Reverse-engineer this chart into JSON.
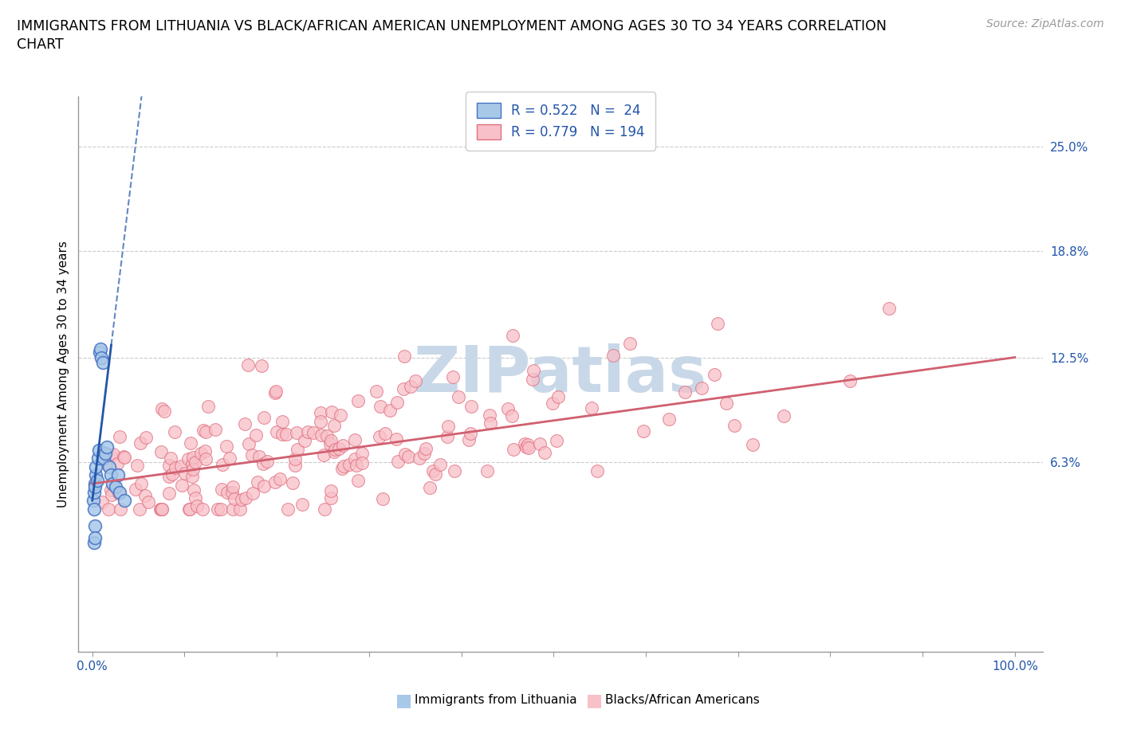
{
  "title_line1": "IMMIGRANTS FROM LITHUANIA VS BLACK/AFRICAN AMERICAN UNEMPLOYMENT AMONG AGES 30 TO 34 YEARS CORRELATION",
  "title_line2": "CHART",
  "source_text": "Source: ZipAtlas.com",
  "ylabel": "Unemployment Among Ages 30 to 34 years",
  "ytick_values": [
    6.3,
    12.5,
    18.8,
    25.0
  ],
  "legend_label1": "Immigrants from Lithuania",
  "legend_label2": "Blacks/African Americans",
  "color_lithuania_fill": "#A8C8E8",
  "color_lithuania_edge": "#4472C4",
  "color_black_fill": "#F8C0C8",
  "color_black_edge": "#E07080",
  "color_trend_lithuania": "#2255AA",
  "color_trend_black": "#D06070",
  "watermark_color": "#C8D8E8",
  "xlim_left": -1.5,
  "xlim_right": 103,
  "ylim_bottom": -5,
  "ylim_top": 28,
  "title_fontsize": 12.5,
  "source_fontsize": 10,
  "axis_label_fontsize": 11,
  "tick_fontsize": 11,
  "legend_fontsize": 12
}
